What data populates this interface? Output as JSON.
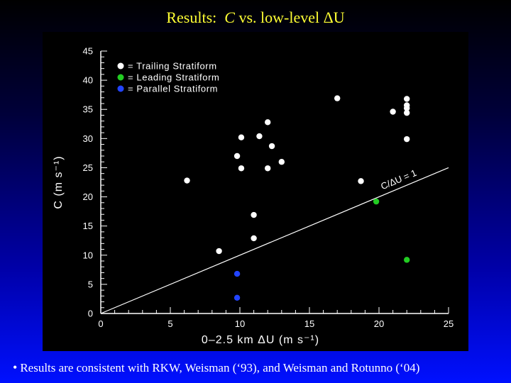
{
  "slide": {
    "title_prefix": "Results:",
    "title_var": "C",
    "title_suffix": "vs. low-level ΔU",
    "footer": "Results are consistent with RKW, Weisman (‘93), and Weisman and Rotunno (‘04)"
  },
  "colors": {
    "background_top": "#000000",
    "background_bottom": "#0010ff",
    "title": "#ffff33",
    "panel": "#000000",
    "trailing": "#ffffff",
    "leading": "#22cc22",
    "parallel": "#2244ff"
  },
  "chart_data": {
    "type": "scatter",
    "title": "",
    "xlabel": "0–2.5 km ΔU (m s⁻¹)",
    "ylabel": "C (m s⁻¹)",
    "xlim": [
      0,
      25
    ],
    "ylim": [
      0,
      45
    ],
    "xticks": [
      0,
      5,
      10,
      15,
      20,
      25
    ],
    "yticks": [
      0,
      5,
      10,
      15,
      20,
      25,
      30,
      35,
      40,
      45
    ],
    "grid": false,
    "legend_position": "top-left",
    "annotation": "C/ΔU = 1",
    "reference_line": {
      "slope": 1,
      "from": [
        0,
        0
      ],
      "to": [
        25,
        25
      ]
    },
    "series": [
      {
        "name": "= Trailing Stratiform",
        "color": "#ffffff",
        "points": [
          [
            6.2,
            22.8
          ],
          [
            8.5,
            10.7
          ],
          [
            9.8,
            27.0
          ],
          [
            10.1,
            30.2
          ],
          [
            10.1,
            24.9
          ],
          [
            11.0,
            16.9
          ],
          [
            11.0,
            12.9
          ],
          [
            11.4,
            30.4
          ],
          [
            12.0,
            32.8
          ],
          [
            12.0,
            24.9
          ],
          [
            12.3,
            28.7
          ],
          [
            13.0,
            26.0
          ],
          [
            17.0,
            36.9
          ],
          [
            18.7,
            22.7
          ],
          [
            21.0,
            34.6
          ],
          [
            22.0,
            36.8
          ],
          [
            22.0,
            35.7
          ],
          [
            22.0,
            35.2
          ],
          [
            22.0,
            34.4
          ],
          [
            22.0,
            29.9
          ]
        ]
      },
      {
        "name": "= Leading Stratiform",
        "color": "#22cc22",
        "points": [
          [
            19.8,
            19.2
          ],
          [
            22.0,
            9.2
          ]
        ]
      },
      {
        "name": "= Parallel Stratiform",
        "color": "#2244ff",
        "points": [
          [
            9.8,
            6.8
          ],
          [
            9.8,
            2.7
          ]
        ]
      }
    ]
  }
}
